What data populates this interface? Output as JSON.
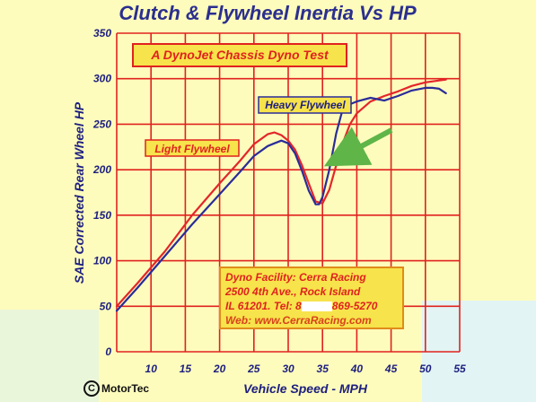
{
  "chart_data": {
    "type": "line",
    "title": "Clutch & Flywheel Inertia Vs HP",
    "subtitle": "A DynoJet Chassis Dyno Test",
    "xlabel": "Vehicle Speed - MPH",
    "ylabel": "SAE Corrected Rear Wheel HP",
    "xlim": [
      5,
      55
    ],
    "ylim": [
      0,
      350
    ],
    "x_ticks": [
      10,
      15,
      20,
      25,
      30,
      35,
      40,
      45,
      50,
      55
    ],
    "y_ticks": [
      0,
      50,
      100,
      150,
      200,
      250,
      300,
      350
    ],
    "grid": true,
    "series": [
      {
        "name": "Light Flywheel",
        "color": "#e3262b",
        "x": [
          5,
          8,
          12,
          16,
          20,
          23,
          25,
          27,
          28,
          29,
          30,
          31,
          32,
          33,
          34,
          35,
          36,
          37,
          38,
          39,
          40,
          42,
          44,
          46,
          48,
          50,
          52,
          53
        ],
        "y": [
          50,
          75,
          110,
          150,
          185,
          210,
          228,
          239,
          241,
          238,
          232,
          222,
          205,
          185,
          165,
          163,
          178,
          205,
          230,
          250,
          262,
          275,
          281,
          286,
          292,
          296,
          298,
          299
        ]
      },
      {
        "name": "Heavy Flywheel",
        "color": "#2a2c9a",
        "x": [
          5,
          8,
          12,
          16,
          20,
          23,
          25,
          27,
          28,
          29,
          30,
          31,
          32,
          33,
          34,
          34.5,
          35,
          36,
          37,
          38,
          38.5,
          39,
          40,
          42,
          44,
          46,
          48,
          50,
          51,
          52,
          53
        ],
        "y": [
          45,
          70,
          105,
          140,
          173,
          198,
          215,
          226,
          229,
          232,
          229,
          218,
          199,
          177,
          162,
          162,
          170,
          200,
          240,
          268,
          272,
          272,
          275,
          279,
          276,
          281,
          287,
          290,
          290,
          289,
          284
        ]
      }
    ],
    "annotations": {
      "facility": {
        "line1": "Dyno  Facility:  Cerra Racing",
        "line2": "2500  4th  Ave.,  Rock Island",
        "line3": "IL  61201.  Tel:  8",
        "line3_end": "869-5270",
        "line4": "Web: www.CerraRacing.com"
      },
      "logo": "MotorTec",
      "logo_symbol": "C"
    }
  }
}
